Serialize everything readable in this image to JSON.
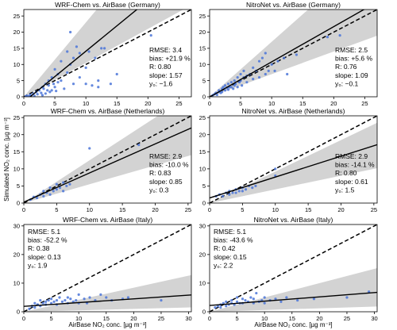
{
  "figure": {
    "ylabel": "Simulated NO₂ conc. [µg m⁻³]",
    "xlabel": "AirBase NO₂ conc. [µg m⁻³]"
  },
  "chart_data": [
    {
      "type": "scatter",
      "title": "WRF-Chem vs. AirBase (Germany)",
      "xlim": [
        0,
        27
      ],
      "ylim": [
        0,
        27
      ],
      "xticks": [
        0,
        5,
        10,
        15,
        20,
        25
      ],
      "yticks": [
        0,
        5,
        10,
        15,
        20,
        25
      ],
      "stats": {
        "rmse": "RMSE: 3.4",
        "bias": "bias: +21.9 %",
        "r": "R: 0.80",
        "slope": "slope: 1.57",
        "y0": "y₀: −1.6"
      },
      "fit": {
        "slope": 1.57,
        "intercept": -1.6
      },
      "band": {
        "lower_slope": 1.05,
        "upper_slope": 2.3
      },
      "points": [
        [
          0.3,
          0.1
        ],
        [
          0.5,
          0.3
        ],
        [
          0.8,
          0.2
        ],
        [
          1,
          0.6
        ],
        [
          1.2,
          0.4
        ],
        [
          1.5,
          1
        ],
        [
          1.7,
          0.3
        ],
        [
          2,
          1.5
        ],
        [
          2.2,
          0.8
        ],
        [
          2.5,
          2
        ],
        [
          2.8,
          1.2
        ],
        [
          3,
          3
        ],
        [
          3,
          0.5
        ],
        [
          3.2,
          2.5
        ],
        [
          3.5,
          4
        ],
        [
          3.5,
          1
        ],
        [
          3.8,
          2
        ],
        [
          4,
          5
        ],
        [
          4,
          3.5
        ],
        [
          4.2,
          1.5
        ],
        [
          4.5,
          6
        ],
        [
          4.5,
          2
        ],
        [
          4.8,
          4
        ],
        [
          5,
          3
        ],
        [
          5,
          8.5
        ],
        [
          5.2,
          1.8
        ],
        [
          5.5,
          7
        ],
        [
          5.5,
          4.5
        ],
        [
          6,
          5
        ],
        [
          6,
          11
        ],
        [
          6.5,
          2.5
        ],
        [
          7,
          14
        ],
        [
          7,
          7.5
        ],
        [
          7.5,
          10
        ],
        [
          7.5,
          20
        ],
        [
          8,
          4
        ],
        [
          8,
          12
        ],
        [
          8.5,
          15.5
        ],
        [
          9,
          6
        ],
        [
          9,
          13.5
        ],
        [
          10,
          9
        ],
        [
          10,
          4
        ],
        [
          10.5,
          14
        ],
        [
          11,
          3.5
        ],
        [
          11.5,
          12
        ],
        [
          12,
          3
        ],
        [
          12,
          5
        ],
        [
          12.5,
          15
        ],
        [
          13,
          15
        ],
        [
          14,
          4
        ],
        [
          15,
          7
        ],
        [
          20.5,
          19
        ]
      ]
    },
    {
      "type": "scatter",
      "title": "NitroNet vs. AirBase (Germany)",
      "xlim": [
        0,
        27
      ],
      "ylim": [
        0,
        27
      ],
      "xticks": [
        0,
        5,
        10,
        15,
        20,
        25
      ],
      "yticks": [
        0,
        5,
        10,
        15,
        20,
        25
      ],
      "stats": {
        "rmse": "RMSE: 2.5",
        "bias": "bias: +5.6 %",
        "r": "R: 0.76",
        "slope": "slope: 1.09",
        "y0": "y₀: −0.1"
      },
      "fit": {
        "slope": 1.09,
        "intercept": -0.1
      },
      "band": {
        "lower_slope": 0.7,
        "upper_slope": 1.7
      },
      "points": [
        [
          0.5,
          0.5
        ],
        [
          0.8,
          0.8
        ],
        [
          1,
          1.2
        ],
        [
          1.2,
          0.6
        ],
        [
          1.5,
          1.5
        ],
        [
          1.5,
          2
        ],
        [
          1.8,
          1.2
        ],
        [
          2,
          2.5
        ],
        [
          2,
          1.5
        ],
        [
          2.2,
          3
        ],
        [
          2.5,
          2
        ],
        [
          2.5,
          3.5
        ],
        [
          2.8,
          2.8
        ],
        [
          3,
          2.2
        ],
        [
          3,
          4
        ],
        [
          3.2,
          3
        ],
        [
          3.5,
          4.5
        ],
        [
          3.5,
          3
        ],
        [
          3.8,
          2.5
        ],
        [
          4,
          5
        ],
        [
          4,
          3.5
        ],
        [
          4.2,
          4
        ],
        [
          4.5,
          3
        ],
        [
          4.5,
          6
        ],
        [
          4.8,
          4.5
        ],
        [
          5,
          5
        ],
        [
          5,
          7
        ],
        [
          5.2,
          3.5
        ],
        [
          5.5,
          6
        ],
        [
          5.5,
          8
        ],
        [
          6,
          4.5
        ],
        [
          6,
          6.5
        ],
        [
          6.5,
          7
        ],
        [
          7,
          5.5
        ],
        [
          7,
          9
        ],
        [
          7.5,
          8
        ],
        [
          8,
          6
        ],
        [
          8,
          11
        ],
        [
          8.5,
          12
        ],
        [
          9,
          7
        ],
        [
          9,
          13.5
        ],
        [
          9.5,
          8
        ],
        [
          10,
          10
        ],
        [
          10.5,
          8
        ],
        [
          11,
          11
        ],
        [
          12,
          12
        ],
        [
          12.5,
          7
        ],
        [
          14,
          13
        ],
        [
          19,
          18.5
        ],
        [
          21,
          19
        ]
      ]
    },
    {
      "type": "scatter",
      "title": "WRF-Chem vs. AirBase (Netherlands)",
      "xlim": [
        0,
        25.5
      ],
      "ylim": [
        0,
        25.5
      ],
      "xticks": [
        0,
        5,
        10,
        15,
        20,
        25
      ],
      "yticks": [
        0,
        5,
        10,
        15,
        20,
        25
      ],
      "stats": {
        "rmse": "RMSE: 2.9",
        "bias": "bias: -10.0 %",
        "r": "R: 0.83",
        "slope": "slope: 0.85",
        "y0": "y₀: 0.3"
      },
      "fit": {
        "slope": 0.85,
        "intercept": 0.3
      },
      "band": {
        "lower_slope": 0.55,
        "upper_slope": 1.25
      },
      "points": [
        [
          1,
          1
        ],
        [
          1.5,
          1.8
        ],
        [
          2,
          1.5
        ],
        [
          2.5,
          2.5
        ],
        [
          3,
          2
        ],
        [
          3,
          3.5
        ],
        [
          3.5,
          3
        ],
        [
          4,
          2.5
        ],
        [
          4,
          4.5
        ],
        [
          4.5,
          3.5
        ],
        [
          5,
          4
        ],
        [
          5,
          5.5
        ],
        [
          5.5,
          4.5
        ],
        [
          6,
          6
        ],
        [
          6,
          3.5
        ],
        [
          6.5,
          5
        ],
        [
          7,
          5.5
        ],
        [
          10,
          16
        ],
        [
          17.5,
          17
        ]
      ]
    },
    {
      "type": "scatter",
      "title": "NitroNet vs. AirBase (Netherlands)",
      "xlim": [
        0,
        25.5
      ],
      "ylim": [
        0,
        25.5
      ],
      "xticks": [
        0,
        5,
        10,
        15,
        20,
        25
      ],
      "yticks": [
        0,
        5,
        10,
        15,
        20,
        25
      ],
      "stats": {
        "rmse": "RMSE: 2.9",
        "bias": "bias: -14.1 %",
        "r": "R: 0.80",
        "slope": "slope: 0.61",
        "y0": "y₀: 1.5"
      },
      "fit": {
        "slope": 0.61,
        "intercept": 1.5
      },
      "band": {
        "lower_slope": 0.4,
        "upper_slope": 0.92
      },
      "points": [
        [
          1,
          2
        ],
        [
          1.5,
          2.5
        ],
        [
          2,
          2
        ],
        [
          2.5,
          3
        ],
        [
          3,
          2.5
        ],
        [
          3,
          3.5
        ],
        [
          3.5,
          3
        ],
        [
          4,
          4
        ],
        [
          4,
          3
        ],
        [
          4.5,
          3.5
        ],
        [
          5,
          4.5
        ],
        [
          5,
          3.5
        ],
        [
          5.5,
          4
        ],
        [
          6,
          5
        ],
        [
          6.5,
          4.5
        ],
        [
          7,
          5
        ],
        [
          10,
          10
        ],
        [
          10,
          8
        ]
      ]
    },
    {
      "type": "scatter",
      "title": "WRF-Chem vs. AirBase (Italy)",
      "xlim": [
        0,
        30.5
      ],
      "ylim": [
        0,
        30.5
      ],
      "xticks": [
        0,
        5,
        10,
        15,
        20,
        25,
        30
      ],
      "yticks": [
        0,
        10,
        20,
        30
      ],
      "stats": {
        "rmse": "RMSE: 5.1",
        "bias": "bias: -52.2 %",
        "r": "R: 0.38",
        "slope": "slope: 0.13",
        "y0": "y₀: 1.9"
      },
      "fit": {
        "slope": 0.13,
        "intercept": 1.9
      },
      "band": {
        "lower_slope": 0.05,
        "upper_slope": 0.42
      },
      "points": [
        [
          1,
          1
        ],
        [
          1.5,
          2
        ],
        [
          2,
          1.5
        ],
        [
          2,
          3
        ],
        [
          2.5,
          2.5
        ],
        [
          3,
          2
        ],
        [
          3,
          4
        ],
        [
          3.5,
          3
        ],
        [
          4,
          2.5
        ],
        [
          4,
          3.5
        ],
        [
          4.5,
          4
        ],
        [
          5,
          3
        ],
        [
          5,
          4.5
        ],
        [
          5.5,
          3.5
        ],
        [
          6,
          4
        ],
        [
          6,
          2.5
        ],
        [
          6.5,
          5
        ],
        [
          7,
          3.5
        ],
        [
          7.5,
          4
        ],
        [
          8,
          3
        ],
        [
          8,
          5
        ],
        [
          8.5,
          4.5
        ],
        [
          9,
          3.5
        ],
        [
          9.5,
          4
        ],
        [
          10,
          6
        ],
        [
          10,
          3
        ],
        [
          11,
          4.5
        ],
        [
          11.5,
          3
        ],
        [
          12,
          5
        ],
        [
          13,
          4
        ],
        [
          14,
          6
        ],
        [
          15,
          5
        ],
        [
          16,
          4
        ],
        [
          18,
          4.5
        ],
        [
          19,
          5
        ],
        [
          25,
          4
        ]
      ]
    },
    {
      "type": "scatter",
      "title": "NitroNet vs. AirBase (Italy)",
      "xlim": [
        0,
        30.5
      ],
      "ylim": [
        0,
        30.5
      ],
      "xticks": [
        0,
        5,
        10,
        15,
        20,
        25,
        30
      ],
      "yticks": [
        0,
        10,
        20,
        30
      ],
      "stats": {
        "rmse": "RMSE: 5.1",
        "bias": "bias: -43.6 %",
        "r": "R: 0.42",
        "slope": "slope: 0.15",
        "y0": "y₀: 2.2"
      },
      "fit": {
        "slope": 0.15,
        "intercept": 2.2
      },
      "band": {
        "lower_slope": 0.06,
        "upper_slope": 0.5
      },
      "points": [
        [
          1,
          1.5
        ],
        [
          1.5,
          2
        ],
        [
          2,
          2.5
        ],
        [
          2,
          1.5
        ],
        [
          2.5,
          3
        ],
        [
          3,
          2
        ],
        [
          3,
          3.5
        ],
        [
          3.5,
          2.5
        ],
        [
          4,
          3
        ],
        [
          4,
          4
        ],
        [
          4.5,
          2.5
        ],
        [
          5,
          3.5
        ],
        [
          5,
          5
        ],
        [
          5.5,
          3
        ],
        [
          6,
          4.5
        ],
        [
          6,
          3
        ],
        [
          6.5,
          4
        ],
        [
          7,
          3.5
        ],
        [
          7.5,
          5
        ],
        [
          8,
          3
        ],
        [
          8,
          4.5
        ],
        [
          8.5,
          6.5
        ],
        [
          9,
          3.5
        ],
        [
          9.5,
          4
        ],
        [
          10,
          5
        ],
        [
          10,
          3
        ],
        [
          11,
          4
        ],
        [
          12,
          4.5
        ],
        [
          13,
          3.5
        ],
        [
          14,
          5
        ],
        [
          16,
          4
        ],
        [
          19,
          4.5
        ],
        [
          25,
          5
        ],
        [
          29,
          7
        ]
      ]
    }
  ]
}
